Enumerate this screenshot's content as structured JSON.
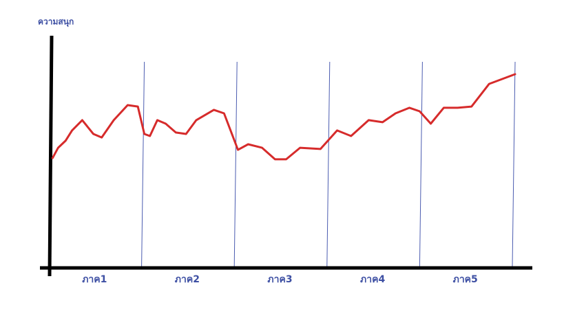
{
  "chart_data": {
    "type": "line",
    "ylabel": "ความสนุก",
    "categories": [
      "ภาค1",
      "ภาค2",
      "ภาค3",
      "ภาค4",
      "ภาค5"
    ],
    "xlim": [
      0,
      5
    ],
    "xticks": [
      1,
      2,
      3,
      4,
      5
    ],
    "ylim": [
      0,
      100
    ],
    "series": [
      {
        "color": "#d62b2b",
        "x": [
          0.01,
          0.07,
          0.15,
          0.22,
          0.33,
          0.45,
          0.54,
          0.67,
          0.82,
          0.93,
          1.0,
          1.06,
          1.14,
          1.23,
          1.34,
          1.45,
          1.56,
          1.75,
          1.86,
          2.01,
          2.12,
          2.27,
          2.41,
          2.53,
          2.68,
          2.9,
          3.08,
          3.23,
          3.42,
          3.57,
          3.71,
          3.86,
          3.97,
          4.09,
          4.23,
          4.38,
          4.53,
          4.72,
          5.0
        ],
        "values": [
          53.3,
          58.3,
          61.7,
          66.7,
          71.7,
          65,
          63.3,
          71.7,
          79,
          78.3,
          65,
          64,
          71.7,
          70,
          65.7,
          65,
          71.7,
          76.7,
          75,
          57.3,
          60,
          58.3,
          52.7,
          52.7,
          58.3,
          57.7,
          66.7,
          64,
          71.7,
          70.7,
          75,
          77.7,
          76,
          70,
          77.7,
          77.7,
          78.3,
          89.3,
          94
        ]
      }
    ]
  }
}
